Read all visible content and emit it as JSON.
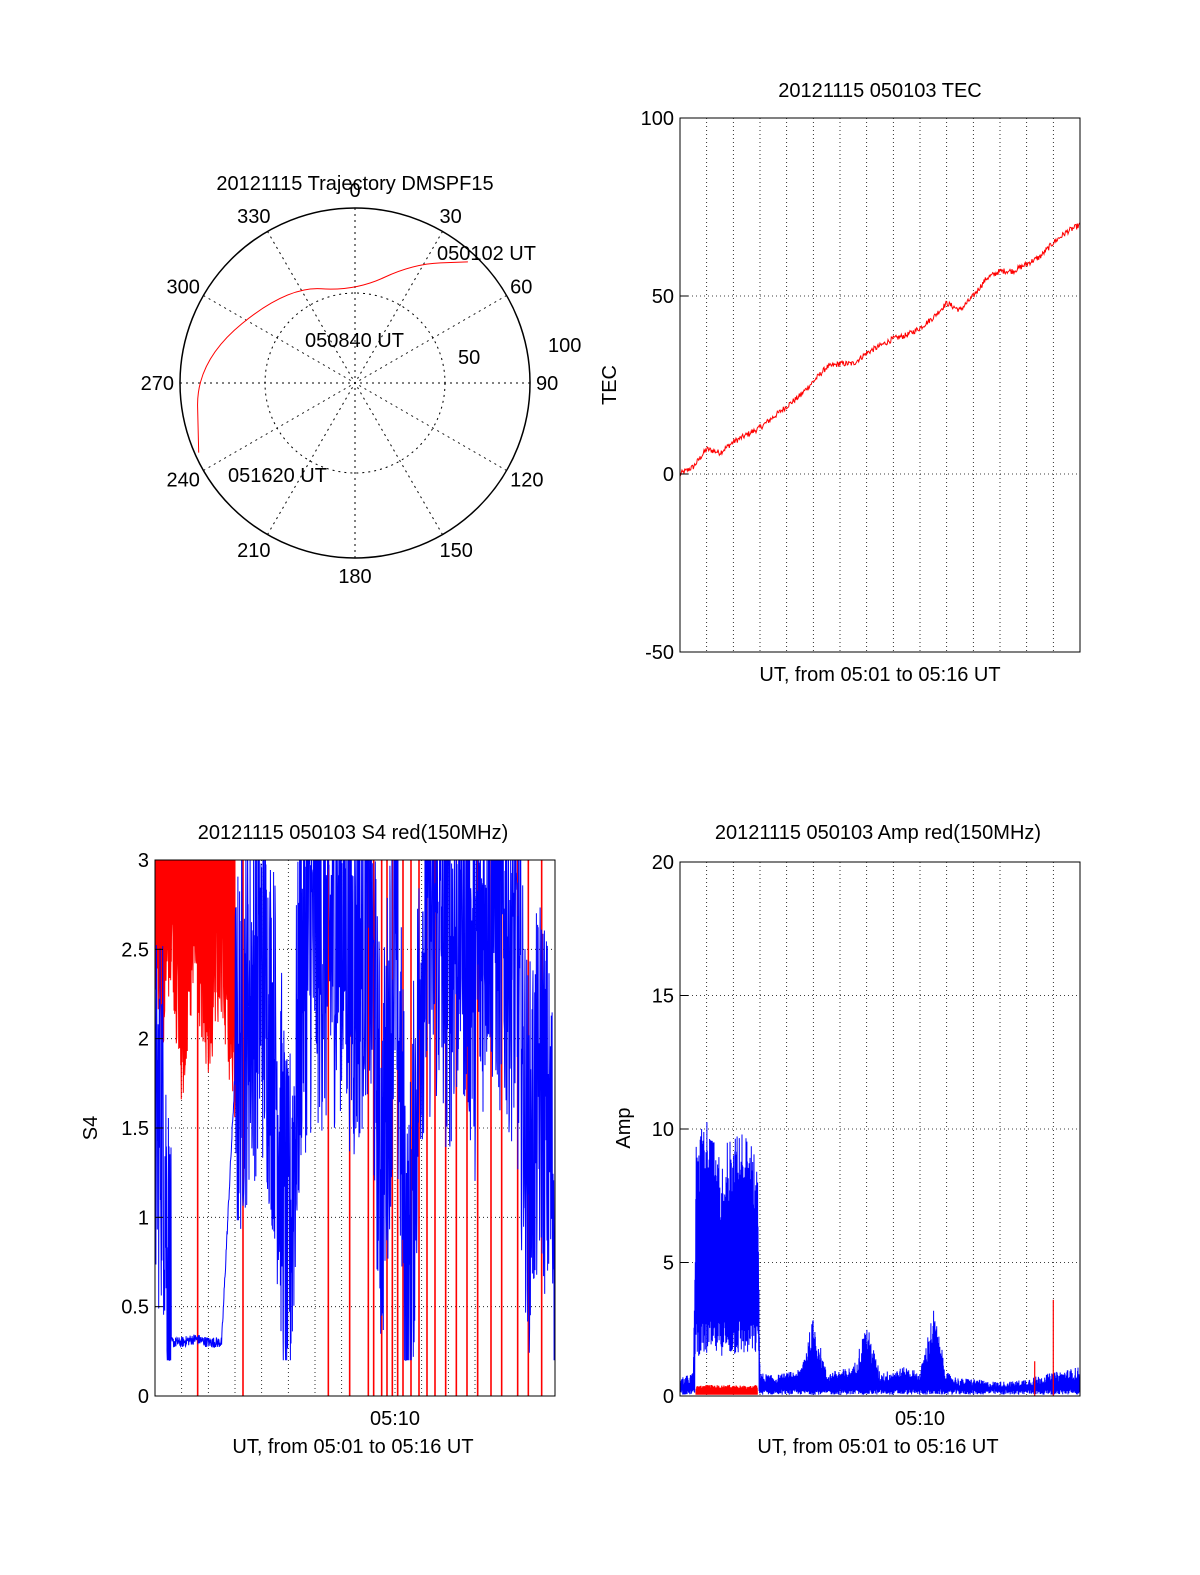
{
  "colors": {
    "background": "#ffffff",
    "axis": "#000000",
    "red": "#ff0000",
    "blue": "#0000ff"
  },
  "chart_data": [
    {
      "type": "polar",
      "title": "20121115 Trajectory DMSPF15",
      "azimuth_ticks": [
        "0",
        "30",
        "60",
        "90",
        "120",
        "150",
        "180",
        "210",
        "240",
        "270",
        "300",
        "330"
      ],
      "radial_labels": [
        "100",
        "50"
      ],
      "grid": "dotted",
      "series": [
        {
          "color": "red",
          "points": [
            {
              "azimuth": 43,
              "zenith": 90
            },
            {
              "azimuth": 26,
              "zenith": 72
            },
            {
              "azimuth": 0,
              "zenith": 50
            },
            {
              "azimuth": -35,
              "zenith": 64
            },
            {
              "azimuth": -82,
              "zenith": 87
            },
            {
              "azimuth": -114,
              "zenith": 93
            }
          ]
        }
      ],
      "annotations": [
        "050102 UT",
        "050840 UT",
        "051620 UT"
      ]
    },
    {
      "type": "line",
      "title": "20121115 050103 TEC",
      "xlabel": "UT, from 05:01 to 05:16 UT",
      "ylabel": "TEC",
      "xlim": [
        0,
        15
      ],
      "ylim": [
        -50,
        100
      ],
      "yticks": [
        "-50",
        "0",
        "50",
        "100"
      ],
      "grid": true,
      "series": [
        {
          "color": "red",
          "x": [
            0,
            0.5,
            0.8,
            1,
            1.5,
            2,
            2.5,
            3,
            3.5,
            4,
            4.5,
            5,
            5.5,
            6,
            6.5,
            7,
            7.5,
            8,
            8.5,
            9,
            9.5,
            10,
            10.5,
            11,
            11.5,
            12,
            12.5,
            13,
            13.5,
            14,
            14.5,
            15
          ],
          "y": [
            0,
            2,
            5,
            7,
            6,
            9,
            11,
            13,
            16,
            19,
            22,
            26,
            30,
            31,
            31,
            34,
            36,
            38,
            39,
            41,
            44,
            48,
            46,
            50,
            55,
            57,
            57,
            59,
            61,
            65,
            68,
            70
          ]
        }
      ]
    },
    {
      "type": "line",
      "title": "20121115 050103 S4 red(150MHz)",
      "xlabel": "UT, from 05:01 to 05:16 UT",
      "ylabel": "S4",
      "xlim": [
        0,
        15
      ],
      "ylim": [
        0,
        3
      ],
      "yticks": [
        "0",
        "0.5",
        "1",
        "1.5",
        "2",
        "2.5",
        "3"
      ],
      "xticks": [
        {
          "x": 9,
          "label": "05:10"
        }
      ],
      "grid": true,
      "series": [
        {
          "color": "blue",
          "x": [
            0,
            0.3,
            0.6,
            1,
            1.5,
            2,
            2.5,
            3,
            3.5,
            4,
            4.5,
            5,
            5.5,
            6,
            6.5,
            7,
            7.5,
            8,
            8.5,
            9,
            9.5,
            10,
            10.5,
            11,
            11.5,
            12,
            12.5,
            13,
            13.5,
            14,
            14.5,
            15
          ],
          "y": [
            1.5,
            1.6,
            0.3,
            0.3,
            0.32,
            0.3,
            0.3,
            1.8,
            2.2,
            2.4,
            1.9,
            0.7,
            2.4,
            2.6,
            2.5,
            2.7,
            2.3,
            2.8,
            1.2,
            2.6,
            0.45,
            2.5,
            2.7,
            2.4,
            2.8,
            2.3,
            2.9,
            2.6,
            2.5,
            1.3,
            1.8,
            1.1
          ]
        },
        {
          "color": "red",
          "x": [
            0,
            0.3,
            0.6,
            1,
            1.5,
            2,
            2.5,
            3
          ],
          "y": [
            3,
            2.6,
            3,
            2.3,
            2.9,
            2.4,
            2.8,
            2.2
          ]
        }
      ]
    },
    {
      "type": "line",
      "title": "20121115 050103 Amp red(150MHz)",
      "xlabel": "UT, from 05:01 to 05:16 UT",
      "ylabel": "Amp",
      "xlim": [
        0,
        15
      ],
      "ylim": [
        0,
        20
      ],
      "yticks": [
        "0",
        "5",
        "10",
        "15",
        "20"
      ],
      "xticks": [
        {
          "x": 9,
          "label": "05:10"
        }
      ],
      "grid": true,
      "series": [
        {
          "color": "blue",
          "x": [
            0,
            0.5,
            0.6,
            1,
            1.5,
            2,
            2.5,
            2.9,
            3,
            3.5,
            4,
            4.5,
            5,
            5.5,
            6,
            6.5,
            7,
            7.5,
            8,
            8.5,
            9,
            9.5,
            10,
            10.5,
            11,
            11.5,
            12,
            12.5,
            13,
            13.5,
            14,
            14.5,
            15
          ],
          "y": [
            0.6,
            0.8,
            9.5,
            10.5,
            9,
            10,
            9.8,
            9,
            0.8,
            0.7,
            0.8,
            0.9,
            2.7,
            0.8,
            0.9,
            1,
            2.5,
            0.8,
            0.9,
            1,
            0.8,
            3,
            0.8,
            0.6,
            0.6,
            0.5,
            0.5,
            0.5,
            0.6,
            0.7,
            0.8,
            0.9,
            1
          ]
        },
        {
          "color": "red",
          "x": [
            0.6,
            1,
            1.5,
            2,
            2.5,
            2.9,
            14
          ],
          "y": [
            0.25,
            0.3,
            0.28,
            0.3,
            0.25,
            0.3,
            3.6
          ]
        }
      ]
    }
  ]
}
